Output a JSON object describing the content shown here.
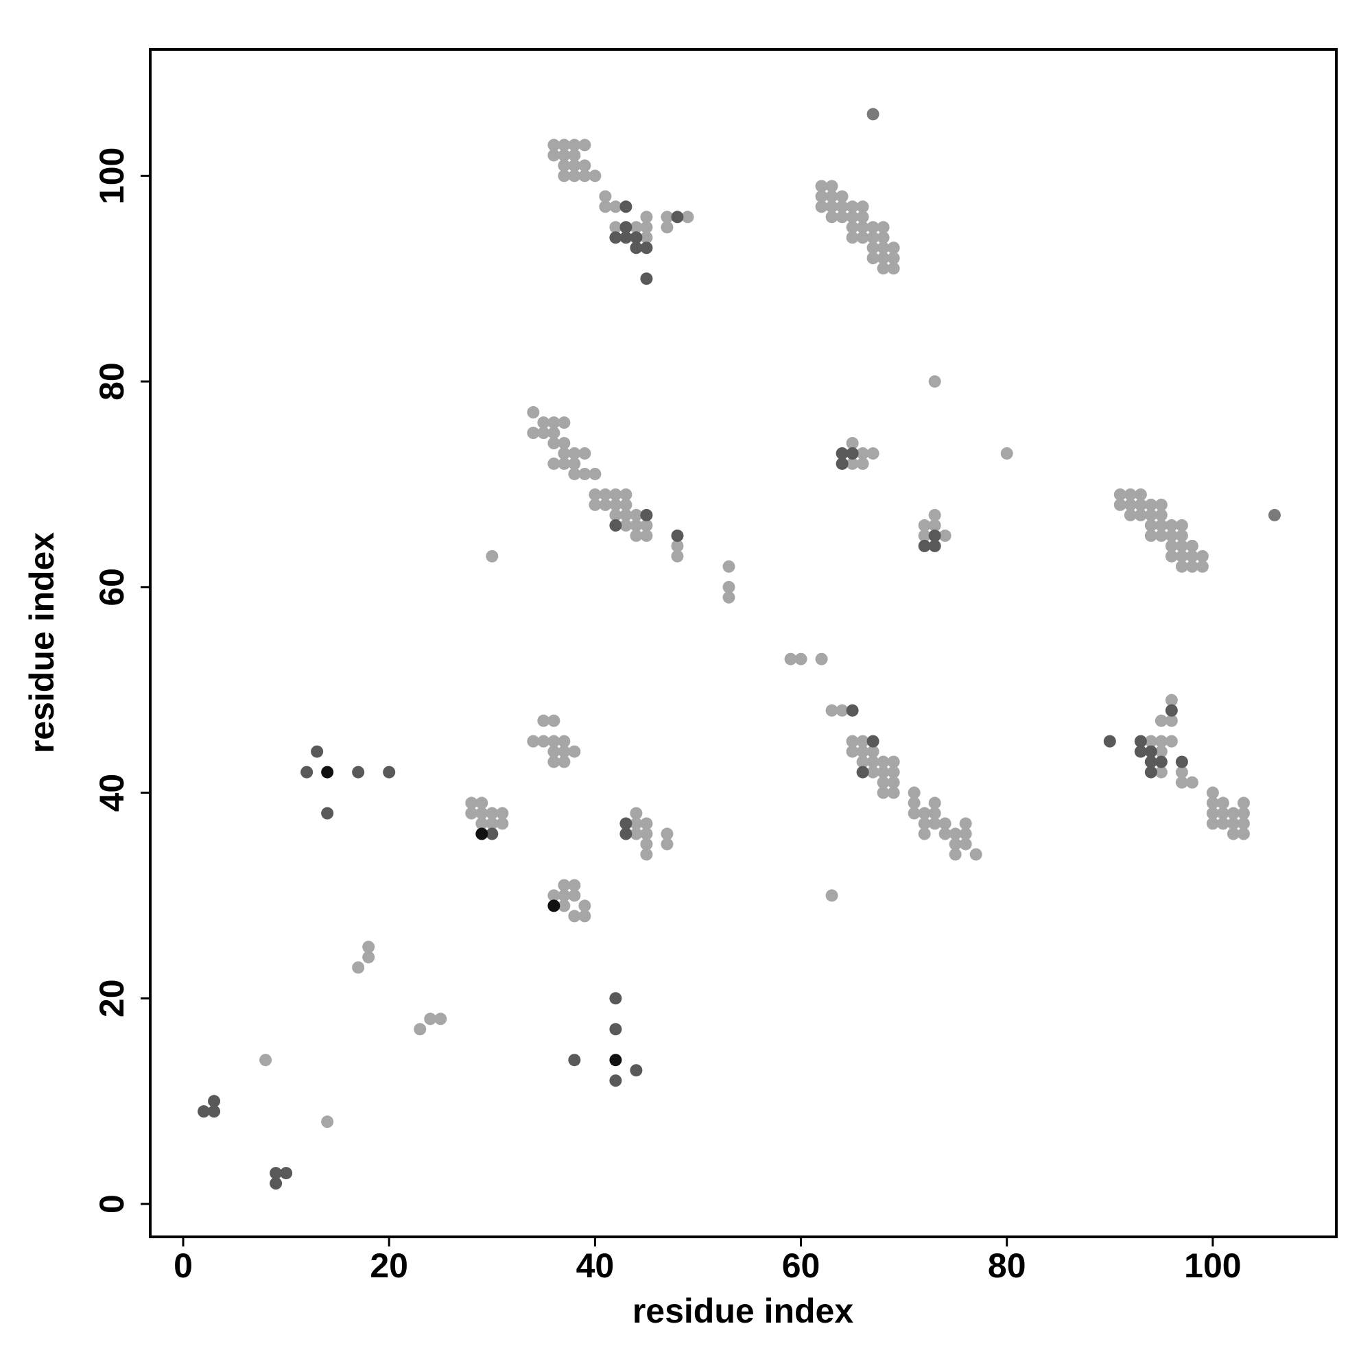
{
  "chart_data": {
    "type": "scatter",
    "x_label": "residue index",
    "y_label": "residue index",
    "xlim": [
      -3.2,
      112
    ],
    "ylim": [
      -3.2,
      112.3
    ],
    "xticks": [
      0,
      20,
      40,
      60,
      80,
      100
    ],
    "yticks": [
      0,
      20,
      40,
      60,
      80,
      100
    ],
    "grid": false,
    "series": [
      {
        "color": "#a6a6a6",
        "x": [
          8,
          14,
          17,
          18,
          18,
          23,
          24,
          25,
          30,
          28,
          29,
          28,
          29,
          30,
          31,
          29,
          30,
          31,
          35,
          36,
          34,
          35,
          36,
          37,
          36,
          37,
          38,
          36,
          37,
          37,
          38,
          36,
          37,
          38,
          37,
          39,
          38,
          39,
          44,
          44,
          45,
          44,
          45,
          45,
          45,
          47,
          47,
          63,
          59,
          60,
          62,
          63,
          64,
          65,
          66,
          65,
          66,
          67,
          66,
          67,
          68,
          69,
          67,
          68,
          69,
          68,
          69,
          68,
          69,
          71,
          71,
          73,
          71,
          72,
          73,
          72,
          73,
          74,
          76,
          72,
          74,
          75,
          76,
          75,
          76,
          75,
          77,
          94,
          95,
          96,
          95,
          95,
          96,
          95,
          96,
          97,
          97,
          98,
          100,
          100,
          101,
          103,
          100,
          101,
          102,
          103,
          100,
          101,
          102,
          103,
          102,
          103,
          34,
          34,
          35,
          36,
          37,
          35,
          36,
          36,
          37,
          37,
          38,
          39,
          36,
          37,
          38,
          38,
          39,
          40,
          40,
          41,
          42,
          43,
          40,
          41,
          42,
          43,
          42,
          43,
          44,
          43,
          44,
          45,
          44,
          45,
          48,
          48,
          53,
          53,
          53,
          73,
          80,
          65,
          66,
          67,
          65,
          66,
          73,
          72,
          73,
          72,
          74,
          91,
          92,
          93,
          91,
          92,
          93,
          94,
          95,
          92,
          93,
          94,
          95,
          94,
          95,
          96,
          97,
          94,
          95,
          96,
          97,
          96,
          97,
          98,
          96,
          97,
          98,
          99,
          97,
          98,
          99,
          36,
          37,
          38,
          39,
          36,
          37,
          38,
          37,
          38,
          39,
          37,
          38,
          39,
          40,
          41,
          41,
          42,
          42,
          44,
          45,
          45,
          45,
          47,
          47,
          49,
          62,
          63,
          62,
          63,
          64,
          62,
          63,
          64,
          65,
          66,
          63,
          64,
          65,
          66,
          65,
          66,
          67,
          68,
          65,
          66,
          67,
          68,
          67,
          68,
          69,
          67,
          68,
          69,
          68,
          69
        ],
        "y": [
          14,
          8,
          23,
          24,
          25,
          17,
          18,
          18,
          63,
          39,
          39,
          38,
          38,
          38,
          38,
          37,
          37,
          37,
          47,
          47,
          45,
          45,
          45,
          45,
          44,
          44,
          44,
          43,
          43,
          31,
          31,
          30,
          30,
          30,
          29,
          29,
          28,
          28,
          38,
          37,
          37,
          36,
          36,
          35,
          34,
          36,
          35,
          30,
          53,
          53,
          53,
          48,
          48,
          45,
          45,
          44,
          44,
          44,
          43,
          43,
          43,
          43,
          42,
          42,
          42,
          41,
          41,
          40,
          40,
          40,
          39,
          39,
          38,
          38,
          38,
          37,
          37,
          37,
          37,
          36,
          36,
          36,
          36,
          35,
          35,
          34,
          34,
          45,
          45,
          45,
          44,
          42,
          49,
          47,
          47,
          42,
          41,
          41,
          40,
          39,
          39,
          39,
          38,
          38,
          38,
          38,
          37,
          37,
          37,
          37,
          36,
          36,
          77,
          75,
          76,
          76,
          76,
          75,
          75,
          74,
          74,
          73,
          73,
          73,
          72,
          72,
          72,
          71,
          71,
          71,
          69,
          69,
          69,
          69,
          68,
          68,
          68,
          68,
          67,
          67,
          67,
          66,
          66,
          66,
          65,
          65,
          64,
          63,
          62,
          60,
          59,
          80,
          73,
          74,
          73,
          73,
          72,
          72,
          67,
          66,
          66,
          65,
          65,
          69,
          69,
          69,
          68,
          68,
          68,
          68,
          68,
          67,
          67,
          67,
          67,
          66,
          66,
          66,
          66,
          65,
          65,
          65,
          65,
          64,
          64,
          64,
          63,
          63,
          63,
          63,
          62,
          62,
          62,
          103,
          103,
          103,
          103,
          102,
          102,
          102,
          101,
          101,
          101,
          100,
          100,
          100,
          100,
          98,
          97,
          97,
          95,
          95,
          96,
          95,
          94,
          96,
          95,
          96,
          99,
          99,
          98,
          98,
          98,
          97,
          97,
          97,
          97,
          97,
          96,
          96,
          96,
          96,
          95,
          95,
          95,
          95,
          94,
          94,
          94,
          94,
          93,
          93,
          93,
          92,
          92,
          92,
          91,
          91
        ]
      },
      {
        "color": "#595959",
        "x": [
          2,
          3,
          3,
          9,
          10,
          9,
          12,
          13,
          14,
          17,
          20,
          30,
          38,
          42,
          42,
          42,
          44,
          43,
          43,
          65,
          67,
          66,
          90,
          93,
          93,
          94,
          94,
          95,
          97,
          94,
          96,
          45,
          42,
          48,
          64,
          65,
          64,
          73,
          72,
          73,
          43,
          43,
          42,
          43,
          44,
          44,
          45,
          45,
          48
        ],
        "y": [
          9,
          9,
          10,
          3,
          3,
          2,
          42,
          44,
          38,
          42,
          42,
          36,
          14,
          20,
          17,
          12,
          13,
          37,
          36,
          48,
          45,
          42,
          45,
          45,
          44,
          44,
          43,
          43,
          43,
          42,
          48,
          67,
          66,
          65,
          73,
          73,
          72,
          65,
          64,
          64,
          97,
          95,
          94,
          94,
          94,
          93,
          93,
          90,
          96
        ]
      },
      {
        "color": "#7a7a7a",
        "x": [
          106,
          67
        ],
        "y": [
          67,
          106
        ]
      },
      {
        "color": "#111111",
        "x": [
          14,
          29,
          36,
          42
        ],
        "y": [
          42,
          36,
          29,
          14
        ]
      }
    ]
  }
}
